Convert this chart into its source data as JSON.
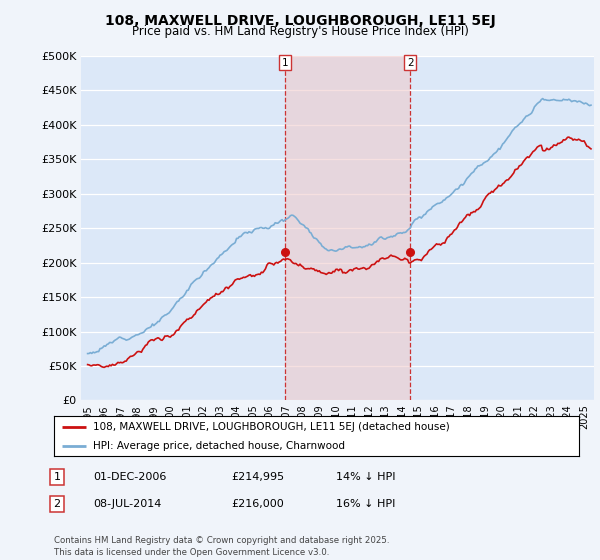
{
  "title_line1": "108, MAXWELL DRIVE, LOUGHBOROUGH, LE11 5EJ",
  "title_line2": "Price paid vs. HM Land Registry's House Price Index (HPI)",
  "bg_color": "#f0f4fa",
  "plot_bg_color": "#dce8f8",
  "grid_color": "#ffffff",
  "hpi_color": "#7aadd4",
  "price_color": "#cc1111",
  "annotation1": "01-DEC-2006",
  "annotation1_price": "£214,995",
  "annotation1_hpi": "14% ↓ HPI",
  "annotation2": "08-JUL-2014",
  "annotation2_price": "£216,000",
  "annotation2_hpi": "16% ↓ HPI",
  "legend_label1": "108, MAXWELL DRIVE, LOUGHBOROUGH, LE11 5EJ (detached house)",
  "legend_label2": "HPI: Average price, detached house, Charnwood",
  "footer": "Contains HM Land Registry data © Crown copyright and database right 2025.\nThis data is licensed under the Open Government Licence v3.0.",
  "ylim": [
    0,
    500000
  ],
  "yticks": [
    0,
    50000,
    100000,
    150000,
    200000,
    250000,
    300000,
    350000,
    400000,
    450000,
    500000
  ],
  "ytick_labels": [
    "£0",
    "£50K",
    "£100K",
    "£150K",
    "£200K",
    "£250K",
    "£300K",
    "£350K",
    "£400K",
    "£450K",
    "£500K"
  ],
  "sale1_year": 2006.917,
  "sale2_year": 2014.5,
  "sale1_price": 214995,
  "sale2_price": 216000
}
